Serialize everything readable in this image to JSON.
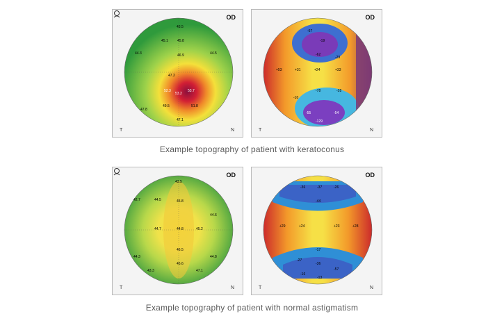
{
  "panels": [
    {
      "od_label": "OD",
      "t_label": "T",
      "n_label": "N",
      "numbers": [
        "43.5",
        "45.1",
        "45.8",
        "46.9",
        "47.2",
        "52.3",
        "53.2",
        "53.7",
        "49.5",
        "51.8",
        "44.3",
        "44.5",
        "47.8",
        "47.1"
      ]
    },
    {
      "od_label": "OD",
      "t_label": "T",
      "n_label": "N",
      "numbers": [
        "-67",
        "-19",
        "-62",
        "-29",
        "+53",
        "+31",
        "+24",
        "+33",
        "-78",
        "-28",
        "-10",
        "-55",
        "-129",
        "-54"
      ]
    },
    {
      "od_label": "OD",
      "t_label": "T",
      "n_label": "N",
      "numbers": [
        "43.5",
        "42.7",
        "44.5",
        "45.8",
        "44.7",
        "44.8",
        "45.2",
        "44.6",
        "46.5",
        "45.6",
        "44.3",
        "44.8",
        "47.1",
        "43.3"
      ]
    },
    {
      "od_label": "OD",
      "t_label": "T",
      "n_label": "N",
      "numbers": [
        "-36",
        "-37",
        "-26",
        "-44",
        "+29",
        "+24",
        "+23",
        "+28",
        "-17",
        "-27",
        "-36",
        "-57",
        "-13",
        "-16"
      ]
    }
  ],
  "captions": {
    "keratoconus": "Example topography of patient with keratoconus",
    "astigmatism": "Example topography of patient with normal astigmatism"
  }
}
